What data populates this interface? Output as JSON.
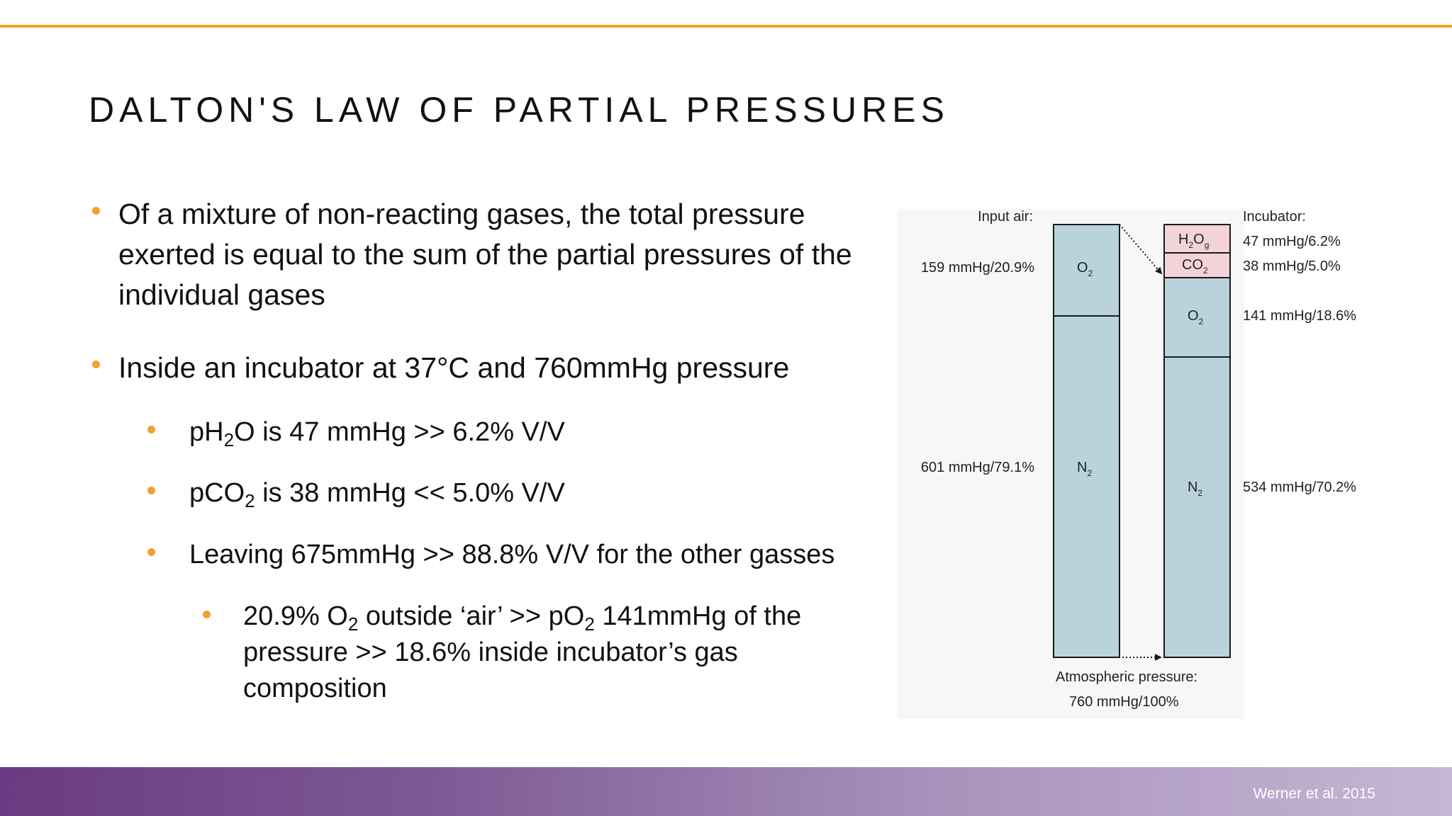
{
  "slide": {
    "title": "DALTON'S LAW OF PARTIAL PRESSURES",
    "citation": "Werner et al. 2015"
  },
  "bullets": {
    "b1": "Of a mixture of non-reacting gases, the total pressure exerted is equal to the sum of the partial pressures of the individual gases",
    "b2": "Inside an incubator at 37°C and 760mmHg pressure",
    "b3": {
      "pre": "pH",
      "sub": "2",
      "post": "O is 47 mmHg >> 6.2% V/V"
    },
    "b4": {
      "pre": "pCO",
      "sub": "2",
      "post": " is 38 mmHg << 5.0% V/V"
    },
    "b5": "Leaving 675mmHg >> 88.8% V/V for the other gasses",
    "b6": {
      "part1": "20.9% O",
      "sub1": "2",
      "part2": " outside ‘air’ >> pO",
      "sub2": "2",
      "part3": " 141mmHg of the pressure >> 18.6% inside incubator’s gas composition"
    }
  },
  "figure": {
    "input_air_label": "Input air:",
    "incubator_label": "Incubator:",
    "atm_label_line1": "Atmospheric pressure:",
    "atm_label_line2": "760 mmHg/100%",
    "input_o2_value": "159 mmHg/20.9%",
    "input_n2_value": "601 mmHg/79.1%",
    "inc_h2o_value": "47 mmHg/6.2%",
    "inc_co2_value": "38 mmHg/5.0%",
    "inc_o2_value": "141 mmHg/18.6%",
    "inc_n2_value": "534 mmHg/70.2%",
    "gas_o": "O",
    "gas_n": "N",
    "gas_h": "H",
    "gas_co": "CO",
    "sub_2": "2",
    "sub_g": "g",
    "colors": {
      "gas_fill": "#b9d3dc",
      "vapor_fill": "#f3d3d9",
      "stroke": "#1a1a1a"
    }
  }
}
